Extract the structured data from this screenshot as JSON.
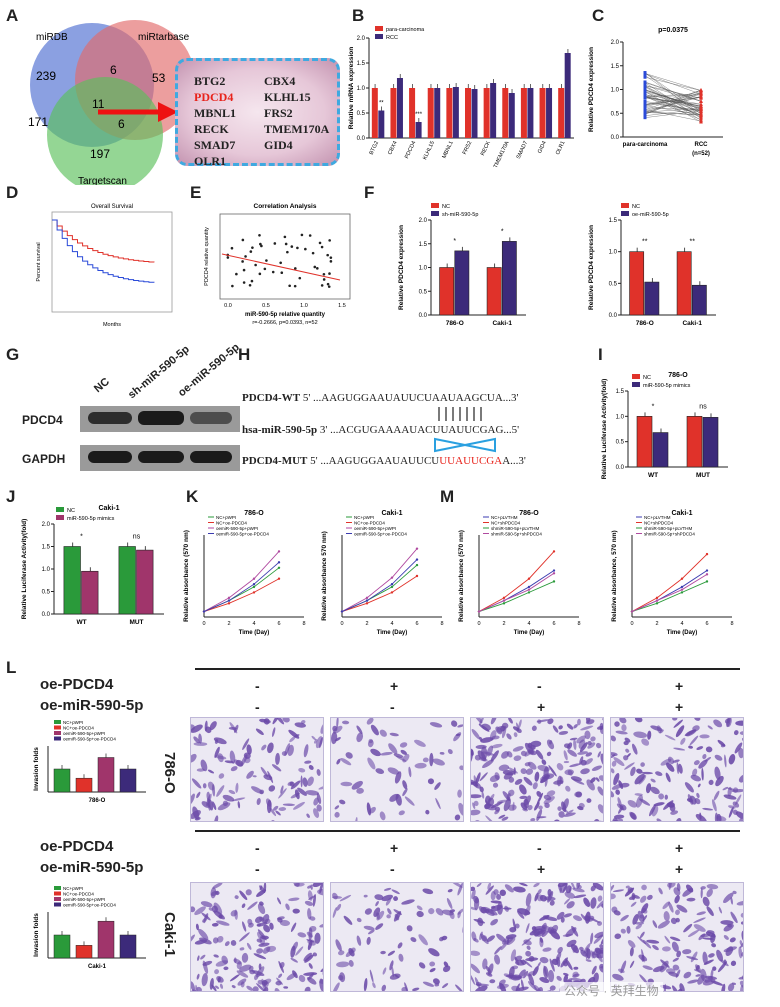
{
  "panels": {
    "A": "A",
    "B": "B",
    "C": "C",
    "D": "D",
    "E": "E",
    "F": "F",
    "G": "G",
    "H": "H",
    "I": "I",
    "J": "J",
    "K": "K",
    "L": "L",
    "M": "M"
  },
  "venn": {
    "mirdb": "miRDB",
    "mirtarbase": "miRtarbase",
    "targetscan": "Targetscan",
    "n239": "239",
    "n6a": "6",
    "n53": "53",
    "n171": "171",
    "n11": "11",
    "n6b": "6",
    "n197": "197"
  },
  "genes": [
    "BTG2",
    "CBX4",
    "PDCD4",
    "KLHL15",
    "MBNL1",
    "FRS2",
    "RECK",
    "TMEM170A",
    "SMAD7",
    "GID4",
    "OLR1"
  ],
  "colors": {
    "red": "#e0322a",
    "purple": "#3c2a7a",
    "green": "#2a9a3a",
    "magenta": "#a0356b",
    "blue": "#2a4ad8"
  },
  "chart_data": [
    {
      "id": "B",
      "type": "bar",
      "ylabel": "Relative mRNA expression",
      "legend": [
        "para-carcinoma",
        "RCC"
      ],
      "categories": [
        "BTG2",
        "CBX4",
        "PDCD4",
        "KLHL15",
        "MBNL1",
        "FRS2",
        "RECK",
        "TMEM170A",
        "SMAD7",
        "GID4",
        "OLR1"
      ],
      "series": [
        {
          "name": "para-carcinoma",
          "values": [
            1.0,
            1.0,
            1.0,
            1.0,
            1.0,
            1.0,
            1.0,
            1.0,
            1.0,
            1.0,
            1.0
          ]
        },
        {
          "name": "RCC",
          "values": [
            0.55,
            1.2,
            0.32,
            1.0,
            1.02,
            0.98,
            1.1,
            0.9,
            1.0,
            1.0,
            1.7
          ]
        }
      ],
      "stars": [
        "**",
        "",
        "***",
        "",
        "",
        "",
        "",
        "",
        "",
        "",
        ""
      ],
      "ylim": [
        0,
        2.0
      ],
      "yticks": [
        "0.0",
        "0.5",
        "1.0",
        "1.5",
        "2.0"
      ]
    },
    {
      "id": "C",
      "type": "scatter",
      "title": "p=0.0375",
      "ylabel": "Relative PDCD4 expression",
      "categories": [
        "para-carcinoma",
        "RCC"
      ],
      "note": "(n=52)",
      "yticks": [
        "0.0",
        "0.5",
        "1.0",
        "1.5",
        "2.0"
      ]
    },
    {
      "id": "D",
      "type": "line",
      "title": "Overall Survival",
      "xlabel": "Months",
      "ylabel": "Percent survival"
    },
    {
      "id": "E",
      "type": "scatter",
      "title": "Correlation Analysis",
      "xlabel": "miR-590-5p relative quantity",
      "ylabel": "PDCD4 relative quantity",
      "stat": "r=-0.2666, p=0.0393, n=52",
      "xticks": [
        "0.0",
        "0.5",
        "1.0",
        "1.5"
      ]
    },
    {
      "id": "F1",
      "type": "bar",
      "ylabel": "Relative PDCD4 expression",
      "legend": [
        "NC",
        "sh-miR-590-5p"
      ],
      "categories": [
        "786-O",
        "Caki-1"
      ],
      "series": [
        {
          "name": "NC",
          "values": [
            1.0,
            1.0
          ]
        },
        {
          "name": "sh-miR-590-5p",
          "values": [
            1.35,
            1.55
          ]
        }
      ],
      "stars": [
        "*",
        "*"
      ],
      "ylim": [
        0,
        2.0
      ],
      "yticks": [
        "0.0",
        "0.5",
        "1.0",
        "1.5",
        "2.0"
      ]
    },
    {
      "id": "F2",
      "type": "bar",
      "ylabel": "Relative PDCD4 expression",
      "legend": [
        "NC",
        "oe-miR-590-5p"
      ],
      "categories": [
        "786-O",
        "Caki-1"
      ],
      "series": [
        {
          "name": "NC",
          "values": [
            1.0,
            1.0
          ]
        },
        {
          "name": "oe-miR-590-5p",
          "values": [
            0.52,
            0.47
          ]
        }
      ],
      "stars": [
        "**",
        "**"
      ],
      "ylim": [
        0,
        1.5
      ],
      "yticks": [
        "0.0",
        "0.5",
        "1.0",
        "1.5"
      ]
    },
    {
      "id": "I",
      "type": "bar",
      "title": "786-O",
      "ylabel": "Relative Luciferase Activity(fold)",
      "legend": [
        "NC",
        "miR-590-5p mimics"
      ],
      "categories": [
        "WT",
        "MUT"
      ],
      "series": [
        {
          "name": "NC",
          "values": [
            1.0,
            1.0
          ]
        },
        {
          "name": "miR-590-5p mimics",
          "values": [
            0.68,
            0.98
          ]
        }
      ],
      "stars": [
        "*",
        "ns"
      ],
      "ylim": [
        0,
        1.5
      ],
      "yticks": [
        "0.0",
        "0.5",
        "1.0",
        "1.5"
      ]
    },
    {
      "id": "J",
      "type": "bar",
      "title": "Caki-1",
      "ylabel": "Relative Luciferase Activity(fold)",
      "legend": [
        "NC",
        "miR-590-5p mimics"
      ],
      "categories": [
        "WT",
        "MUT"
      ],
      "series": [
        {
          "name": "NC",
          "values": [
            1.5,
            1.5
          ]
        },
        {
          "name": "miR-590-5p mimics",
          "values": [
            0.95,
            1.42
          ]
        }
      ],
      "stars": [
        "*",
        "ns"
      ],
      "ylim": [
        0,
        2.0
      ],
      "yticks": [
        "0.0",
        "0.5",
        "1.0",
        "1.5",
        "2.0"
      ]
    },
    {
      "id": "K1",
      "type": "line",
      "title": "786-O",
      "xlabel": "Time (Day)",
      "ylabel": "Relative absorbance (570 nm)",
      "legend": [
        "NC+pWPI",
        "NC+oe-PDCD4",
        "oemiR-590-5p+pWPI",
        "oemiR-590-5p+oe-PDCD4"
      ],
      "x": [
        0,
        2,
        4,
        6
      ],
      "series": [
        {
          "name": "NC+pWPI",
          "values": [
            0.1,
            0.3,
            0.55,
            0.9
          ]
        },
        {
          "name": "NC+oe-PDCD4",
          "values": [
            0.1,
            0.25,
            0.45,
            0.7
          ]
        },
        {
          "name": "oemiR-590-5p+pWPI",
          "values": [
            0.1,
            0.35,
            0.7,
            1.2
          ]
        },
        {
          "name": "oemiR-590-5p+oe-PDCD4",
          "values": [
            0.1,
            0.3,
            0.6,
            1.0
          ]
        }
      ],
      "ylim": [
        0,
        1.5
      ],
      "xticks": [
        "0",
        "2",
        "4",
        "6",
        "8"
      ]
    },
    {
      "id": "K2",
      "type": "line",
      "title": "Caki-1",
      "xlabel": "Time (Day)",
      "ylabel": "Relative absorbance 570 nm)",
      "legend": [
        "NC+pWPI",
        "NC+oe-PDCD4",
        "oemiR-590-5p+pWPI",
        "oemiR-590-5p+oe-PDCD4"
      ],
      "x": [
        0,
        2,
        4,
        6
      ],
      "series": [
        {
          "name": "NC+pWPI",
          "values": [
            0.1,
            0.3,
            0.55,
            0.95
          ]
        },
        {
          "name": "NC+oe-PDCD4",
          "values": [
            0.1,
            0.25,
            0.45,
            0.75
          ]
        },
        {
          "name": "oemiR-590-5p+pWPI",
          "values": [
            0.1,
            0.35,
            0.72,
            1.25
          ]
        },
        {
          "name": "oemiR-590-5p+oe-PDCD4",
          "values": [
            0.1,
            0.3,
            0.6,
            1.05
          ]
        }
      ],
      "ylim": [
        0,
        1.5
      ],
      "xticks": [
        "0",
        "2",
        "4",
        "6",
        "8"
      ]
    },
    {
      "id": "M1",
      "type": "line",
      "title": "786-O",
      "xlabel": "Time (Day)",
      "ylabel": "Relative absorbance (570 nm)",
      "legend": [
        "NC+pLVTHM",
        "NC+shPDCD4",
        "shmiR-590-5p+pLVTHM",
        "shmiR-590-5p+shPDCD4"
      ],
      "x": [
        0,
        2,
        4,
        6
      ],
      "series": [
        {
          "name": "NC+pLVTHM",
          "values": [
            0.1,
            0.3,
            0.55,
            0.85
          ]
        },
        {
          "name": "NC+shPDCD4",
          "values": [
            0.1,
            0.35,
            0.7,
            1.2
          ]
        },
        {
          "name": "shmiR-590-5p+pLVTHM",
          "values": [
            0.1,
            0.25,
            0.45,
            0.65
          ]
        },
        {
          "name": "shmiR-590-5p+shPDCD4",
          "values": [
            0.1,
            0.3,
            0.5,
            0.8
          ]
        }
      ],
      "ylim": [
        0,
        1.5
      ],
      "xticks": [
        "0",
        "2",
        "4",
        "6",
        "8"
      ]
    },
    {
      "id": "M2",
      "type": "line",
      "title": "Caki-1",
      "xlabel": "Time (Day)",
      "ylabel": "Relative absorbance, 570 nm)",
      "legend": [
        "NC+pLVTHM",
        "NC+shPDCD4",
        "shmiR-590-5p+pLVTHM",
        "shmiR-590-5p+shPDCD4"
      ],
      "x": [
        0,
        2,
        4,
        6
      ],
      "series": [
        {
          "name": "NC+pLVTHM",
          "values": [
            0.1,
            0.3,
            0.55,
            0.85
          ]
        },
        {
          "name": "NC+shPDCD4",
          "values": [
            0.1,
            0.35,
            0.7,
            1.15
          ]
        },
        {
          "name": "shmiR-590-5p+pLVTHM",
          "values": [
            0.1,
            0.25,
            0.45,
            0.65
          ]
        },
        {
          "name": "shmiR-590-5p+shPDCD4",
          "values": [
            0.1,
            0.3,
            0.5,
            0.78
          ]
        }
      ],
      "ylim": [
        0,
        1.5
      ],
      "xticks": [
        "0",
        "2",
        "4",
        "6",
        "8"
      ]
    },
    {
      "id": "L1",
      "type": "bar",
      "title": "786-O",
      "ylabel": "Invasion folds",
      "legend": [
        "NC+pWPI",
        "NC+oe-PDCD4",
        "oemiR-590-5p+pWPI",
        "oemiR-590-5p+oe-PDCD4"
      ],
      "categories": [
        "NC+pWPI",
        "NC+oe-PDCD4",
        "oemiR-590-5p+pWPI",
        "oemiR-590-5p+oe-PDCD4"
      ],
      "values": [
        1.0,
        0.6,
        1.5,
        1.0
      ],
      "ylim": [
        0,
        2.0
      ]
    },
    {
      "id": "L2",
      "type": "bar",
      "title": "Caki-1",
      "ylabel": "Invasion folds",
      "legend": [
        "NC+pWPI",
        "NC+oe-PDCD4",
        "oemiR-590-5p+pWPI",
        "oemiR-590-5p+oe-PDCD4"
      ],
      "categories": [
        "NC+pWPI",
        "NC+oe-PDCD4",
        "oemiR-590-5p+pWPI",
        "oemiR-590-5p+oe-PDCD4"
      ],
      "values": [
        1.0,
        0.55,
        1.6,
        1.0
      ],
      "ylim": [
        0,
        2.0
      ]
    }
  ],
  "western": {
    "lanes": [
      "NC",
      "sh-miR-590-5p",
      "oe-miR-590-5p"
    ],
    "rows": [
      "PDCD4",
      "GAPDH"
    ]
  },
  "sequences": {
    "wt_label": "PDCD4-WT",
    "wt_seq": "5' ...AAGUGGAAUAUUCUAAUAAGCUA...3'",
    "mir_label": "hsa-miR-590-5p",
    "mir_seq": "3' ...ACGUGAAAAUACUUAUUCGAG...5'",
    "mut_label": "PDCD4-MUT",
    "mut_pre": "5' ...AAGUGGAAUAUUCU",
    "mut_red": "UUAUUCGA",
    "mut_post": "A...3'"
  },
  "transwell": {
    "oe_pdcd4": "oe-PDCD4",
    "oe_mir": "oe-miR-590-5p",
    "pdcd4_signs": [
      "-",
      "+",
      "-",
      "+"
    ],
    "mir_signs": [
      "-",
      "-",
      "+",
      "+"
    ],
    "rows": [
      "786-O",
      "Caki-1"
    ]
  },
  "watermark": "公众号 · 英拜生物"
}
